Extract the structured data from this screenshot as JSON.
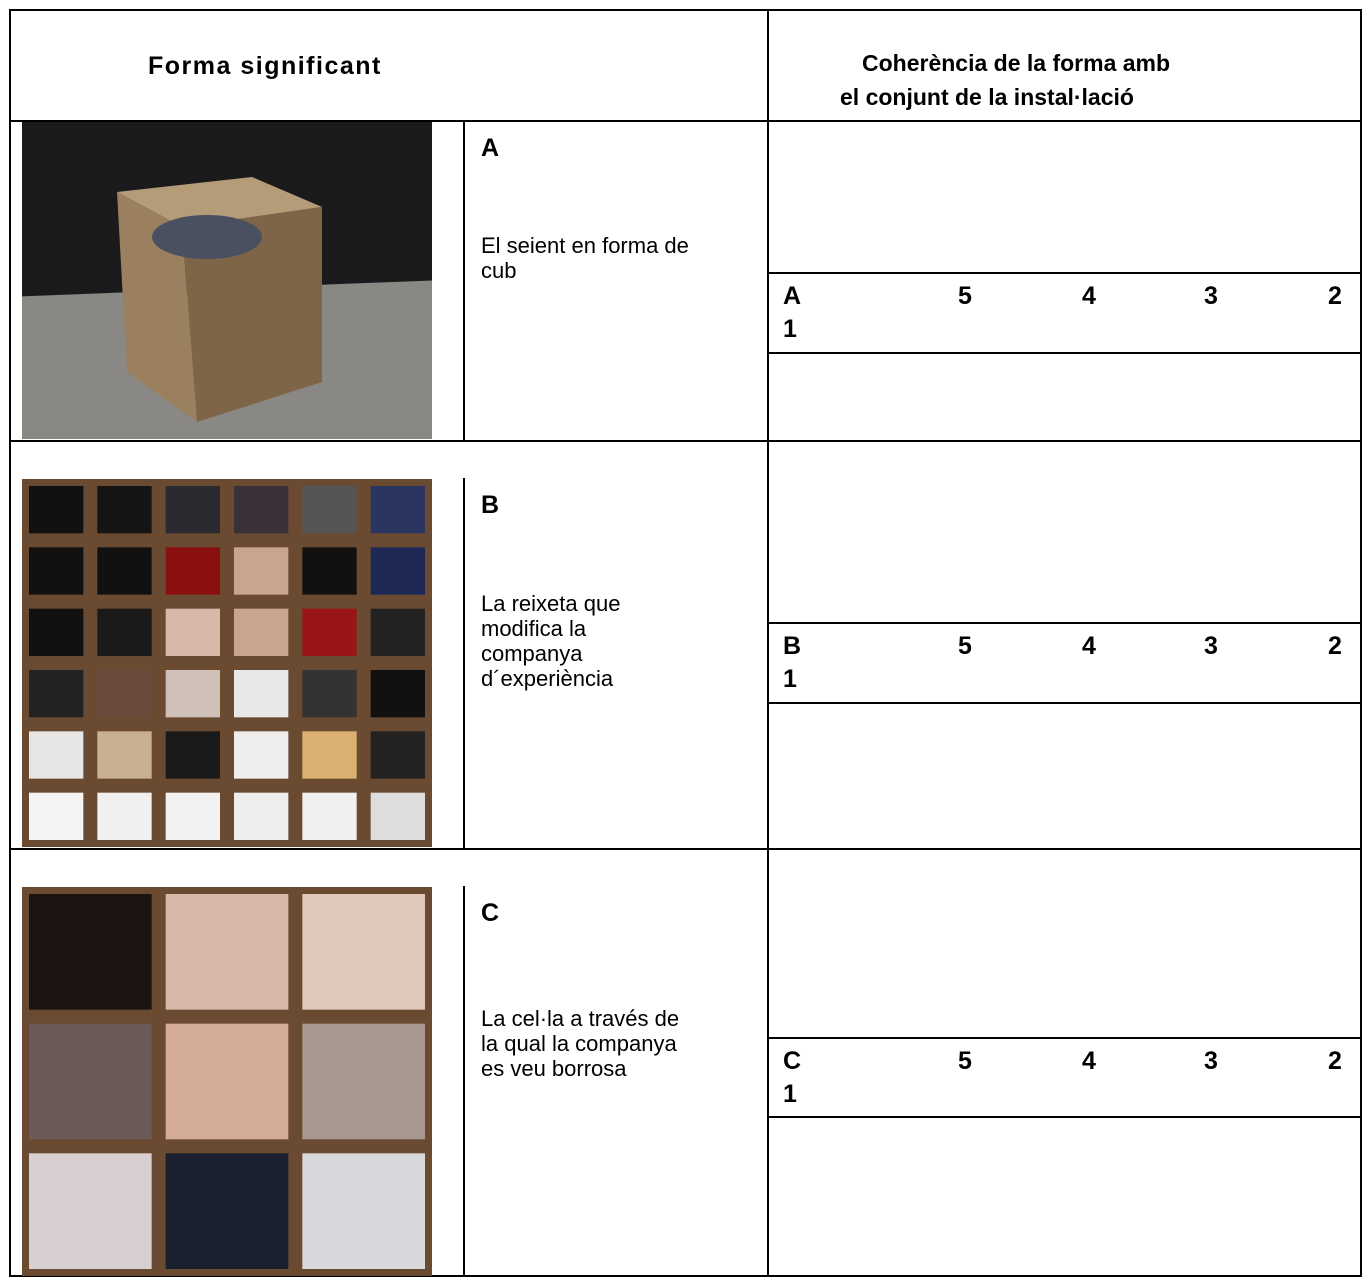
{
  "header": {
    "left": "Forma significant",
    "right": [
      "Coherència de la forma amb",
      "el conjunt de la instal·lació"
    ]
  },
  "rows": [
    {
      "letter": "A",
      "description": [
        "El seient en forma de",
        "cub"
      ],
      "scale": [
        "5",
        "4",
        "3",
        "2",
        "1"
      ]
    },
    {
      "letter": "B",
      "description": [
        "La reixeta que",
        "modifica la",
        "companya",
        "d´experiència"
      ],
      "scale": [
        "5",
        "4",
        "3",
        "2",
        "1"
      ]
    },
    {
      "letter": "C",
      "description": [
        "La cel·la a través de",
        "la qual la companya",
        "es veu borrosa"
      ],
      "scale": [
        "5",
        "4",
        "3",
        "2",
        "1"
      ]
    }
  ]
}
